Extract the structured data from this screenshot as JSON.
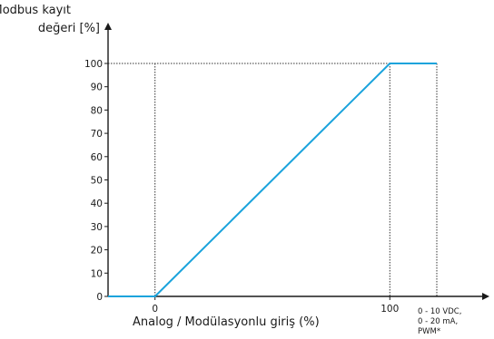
{
  "chart_data": {
    "type": "line",
    "y_title_lines": [
      "Modbus kayıt",
      "değeri [%]"
    ],
    "x_title": "Analog / Modülasyonlu giriş (%)",
    "x_end_note_lines": [
      "0 - 10 VDC,",
      "0 - 20 mA,",
      "PWM*"
    ],
    "x_tick_labels": [
      "0",
      "100"
    ],
    "y_ticks": [
      0,
      10,
      20,
      30,
      40,
      50,
      60,
      70,
      80,
      90,
      100
    ],
    "xlim": [
      -20,
      120
    ],
    "ylim": [
      0,
      100
    ],
    "series": [
      {
        "points": [
          {
            "x": -20,
            "y": 0
          },
          {
            "x": 0,
            "y": 0
          },
          {
            "x": 100,
            "y": 100
          },
          {
            "x": 120,
            "y": 100
          }
        ]
      }
    ],
    "colors": {
      "line": "#1aa3dc",
      "axis": "#1a1a1a",
      "guide": "#333333"
    }
  }
}
